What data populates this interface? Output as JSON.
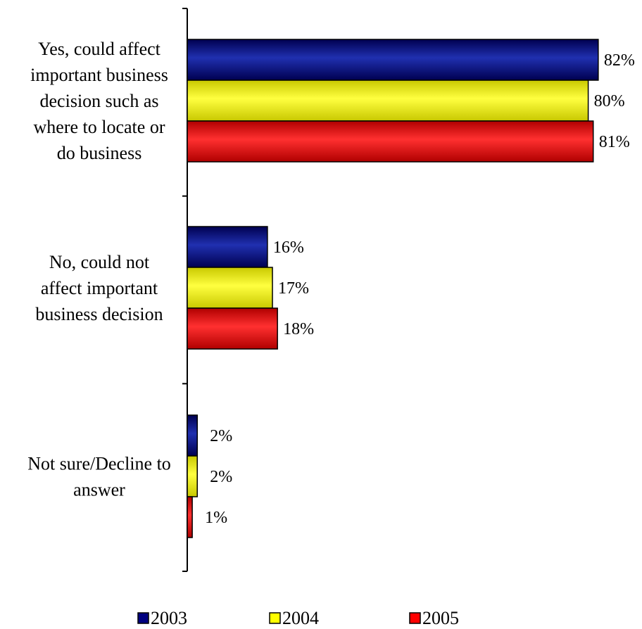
{
  "chart_data": {
    "type": "bar",
    "orientation": "horizontal",
    "categories": [
      "Yes, could affect important business decision such as where to locate or do business",
      "No, could not affect important business decision",
      "Not sure/Decline to answer"
    ],
    "category_label_lines": [
      [
        "Yes, could affect",
        "important business",
        "decision such as",
        "where to locate or",
        "do business"
      ],
      [
        "No, could not",
        "affect important",
        "business decision"
      ],
      [
        "Not sure/Decline to",
        "answer"
      ]
    ],
    "series": [
      {
        "name": "2003",
        "color": "#000080",
        "values": [
          82,
          16,
          2
        ],
        "labels": [
          "82%",
          "16%",
          "2%"
        ]
      },
      {
        "name": "2004",
        "color": "#FFFF00",
        "values": [
          80,
          17,
          2
        ],
        "labels": [
          "80%",
          "17%",
          "2%"
        ]
      },
      {
        "name": "2005",
        "color": "#FF0000",
        "values": [
          81,
          18,
          1
        ],
        "labels": [
          "81%",
          "18%",
          "1%"
        ]
      }
    ],
    "xlim": [
      0,
      100
    ],
    "grid": false,
    "legend_position": "bottom"
  }
}
